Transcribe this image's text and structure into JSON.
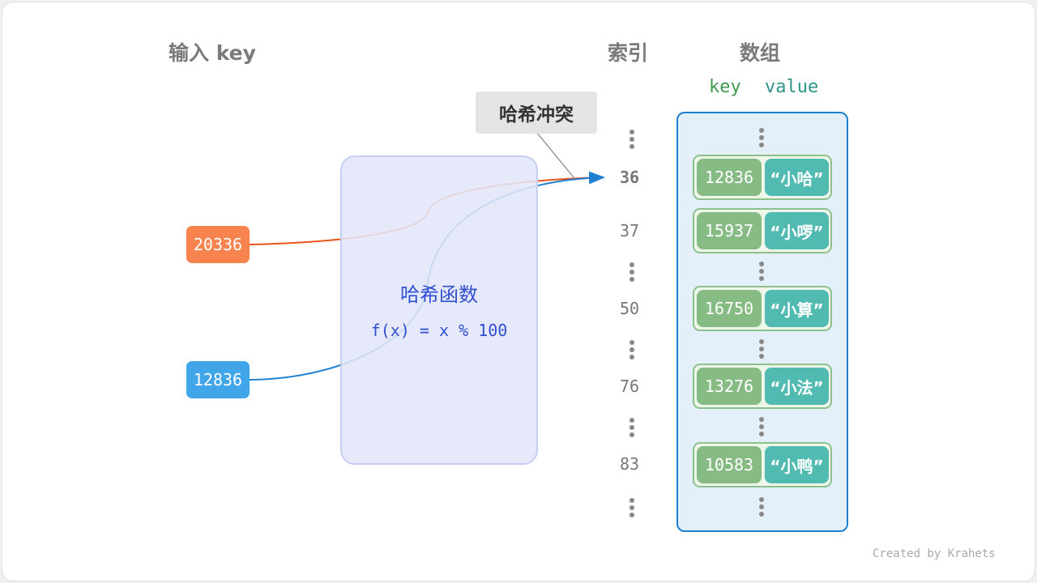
{
  "headers": {
    "input": "输入 key",
    "index": "索引",
    "array": "数组",
    "key": "key",
    "value": "value"
  },
  "collision_label": "哈希冲突",
  "inputs": [
    {
      "key": "20336",
      "color": "#f7834f"
    },
    {
      "key": "12836",
      "color": "#41a5ea"
    }
  ],
  "hash_function": {
    "title": "哈希函数",
    "formula": "f(x) = x % 100"
  },
  "indices": [
    "36",
    "37",
    "50",
    "76",
    "83"
  ],
  "entries": [
    {
      "index": "36",
      "key": "12836",
      "value": "“小哈”"
    },
    {
      "index": "37",
      "key": "15937",
      "value": "“小啰”"
    },
    {
      "index": "50",
      "key": "16750",
      "value": "“小算”"
    },
    {
      "index": "76",
      "key": "13276",
      "value": "“小法”"
    },
    {
      "index": "83",
      "key": "10583",
      "value": "“小鸭”"
    }
  ],
  "colors": {
    "orange_line": "#e8541a",
    "blue_line": "#1f7fcf",
    "key_cell": "#86bb84",
    "value_cell": "#52bbb1"
  },
  "credit": "Created by Krahets"
}
